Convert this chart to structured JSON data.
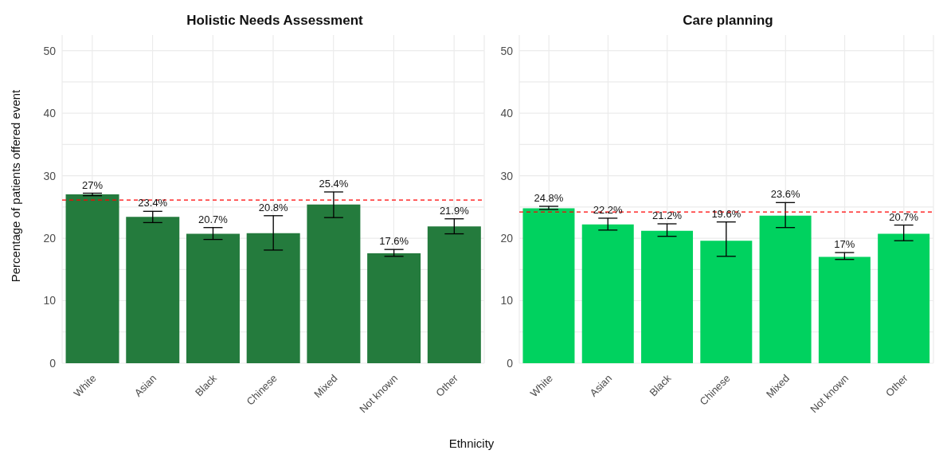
{
  "chart_data": [
    {
      "type": "bar",
      "title": "Holistic Needs Assessment",
      "ylabel": "Percentage of patients offered event",
      "xlabel": "Ethnicity",
      "categories": [
        "White",
        "Asian",
        "Black",
        "Chinese",
        "Mixed",
        "Not known",
        "Other"
      ],
      "values": [
        27,
        23.4,
        20.7,
        20.8,
        25.4,
        17.6,
        21.9
      ],
      "color": "#247b3d",
      "errors": [
        [
          26.8,
          27.2
        ],
        [
          22.5,
          24.3
        ],
        [
          19.8,
          21.7
        ],
        [
          18.1,
          23.6
        ],
        [
          23.3,
          27.4
        ],
        [
          17.1,
          18.2
        ],
        [
          20.7,
          23.1
        ]
      ],
      "value_labels": [
        "27%",
        "23.4%",
        "20.7%",
        "20.8%",
        "25.4%",
        "17.6%",
        "21.9%"
      ],
      "ylim": [
        0,
        52.5
      ],
      "yticks": [
        0,
        {
          "value": 5,
          "label": null
        },
        10,
        {
          "value": 15,
          "label": null
        },
        20,
        {
          "value": 25,
          "label": null
        },
        30,
        {
          "value": 35,
          "label": null
        },
        40,
        {
          "value": 45,
          "label": null
        },
        50
      ],
      "ref_lines": [
        {
          "axis": "y",
          "value": 26.1,
          "color": "#ff0000",
          "line_style": "dashed"
        }
      ],
      "grid": true
    },
    {
      "type": "bar",
      "title": "Care planning",
      "categories": [
        "White",
        "Asian",
        "Black",
        "Chinese",
        "Mixed",
        "Not known",
        "Other"
      ],
      "values": [
        24.8,
        22.2,
        21.2,
        19.6,
        23.6,
        17,
        20.7
      ],
      "color": "#00d25f",
      "errors": [
        [
          24.6,
          25.1
        ],
        [
          21.3,
          23.2
        ],
        [
          20.3,
          22.3
        ],
        [
          17.1,
          22.6
        ],
        [
          21.7,
          25.7
        ],
        [
          16.6,
          17.7
        ],
        [
          19.6,
          22.1
        ]
      ],
      "value_labels": [
        "24.8%",
        "22.2%",
        "21.2%",
        "19.6%",
        "23.6%",
        "17%",
        "20.7%"
      ],
      "ylim": [
        0,
        52.5
      ],
      "yticks": [
        0,
        {
          "value": 5,
          "label": null
        },
        10,
        {
          "value": 15,
          "label": null
        },
        20,
        {
          "value": 25,
          "label": null
        },
        30,
        {
          "value": 35,
          "label": null
        },
        40,
        {
          "value": 45,
          "label": null
        },
        50
      ],
      "ref_lines": [
        {
          "axis": "y",
          "value": 24.2,
          "color": "#ff0000",
          "line_style": "dashed"
        }
      ],
      "grid": true
    }
  ]
}
